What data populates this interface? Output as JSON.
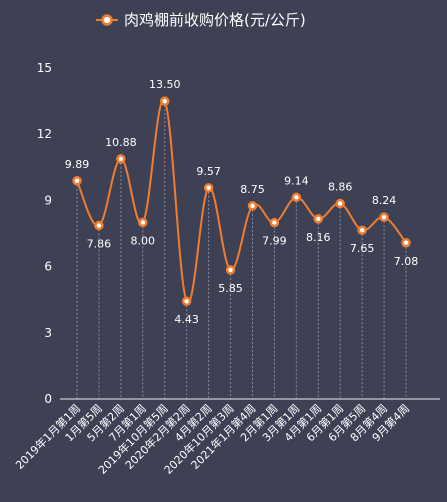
{
  "chart_data": {
    "type": "line",
    "title": "",
    "xlabel": "",
    "ylabel": "",
    "categories": [
      "2019年1月第1周",
      "1月第5周",
      "5月第2周",
      "7月第1周",
      "2019年10月第5周",
      "2020年2月第2周",
      "4月第2周",
      "2020年10月第3周",
      "2021年1月第4周",
      "2月第1周",
      "3月第1周",
      "4月第1周",
      "6月第1周",
      "6月第5周",
      "8月第4周",
      "9月第4周"
    ],
    "series": [
      {
        "name": "肉鸡棚前收购价格(元/公斤)",
        "values": [
          9.89,
          7.86,
          10.88,
          8.0,
          13.5,
          4.43,
          9.57,
          5.85,
          8.75,
          7.99,
          9.14,
          8.16,
          8.86,
          7.65,
          8.24,
          7.08
        ],
        "labels": [
          "9.89",
          "7.86",
          "10.88",
          "8.00",
          "13.50",
          "4.43",
          "9.57",
          "5.85",
          "8.75",
          "7.99",
          "9.14",
          "8.16",
          "8.86",
          "7.65",
          "8.24",
          "7.08"
        ],
        "label_position": [
          "above",
          "below",
          "above",
          "below",
          "above",
          "below",
          "above",
          "below",
          "above",
          "below",
          "above",
          "below",
          "above",
          "below",
          "above",
          "below"
        ]
      }
    ],
    "ylim": [
      0,
      15
    ],
    "yticks": [
      "0",
      "3",
      "6",
      "9",
      "12",
      "15"
    ],
    "grid": "vertical dashed lines at categories",
    "legend": "top-center",
    "colors": {
      "background": "#3e4054",
      "line": "#ee7d31",
      "marker_fill": "#ffffff",
      "text": "#ffffff",
      "grid": "#8a8c9c",
      "axis": "#c8c9d2"
    }
  }
}
